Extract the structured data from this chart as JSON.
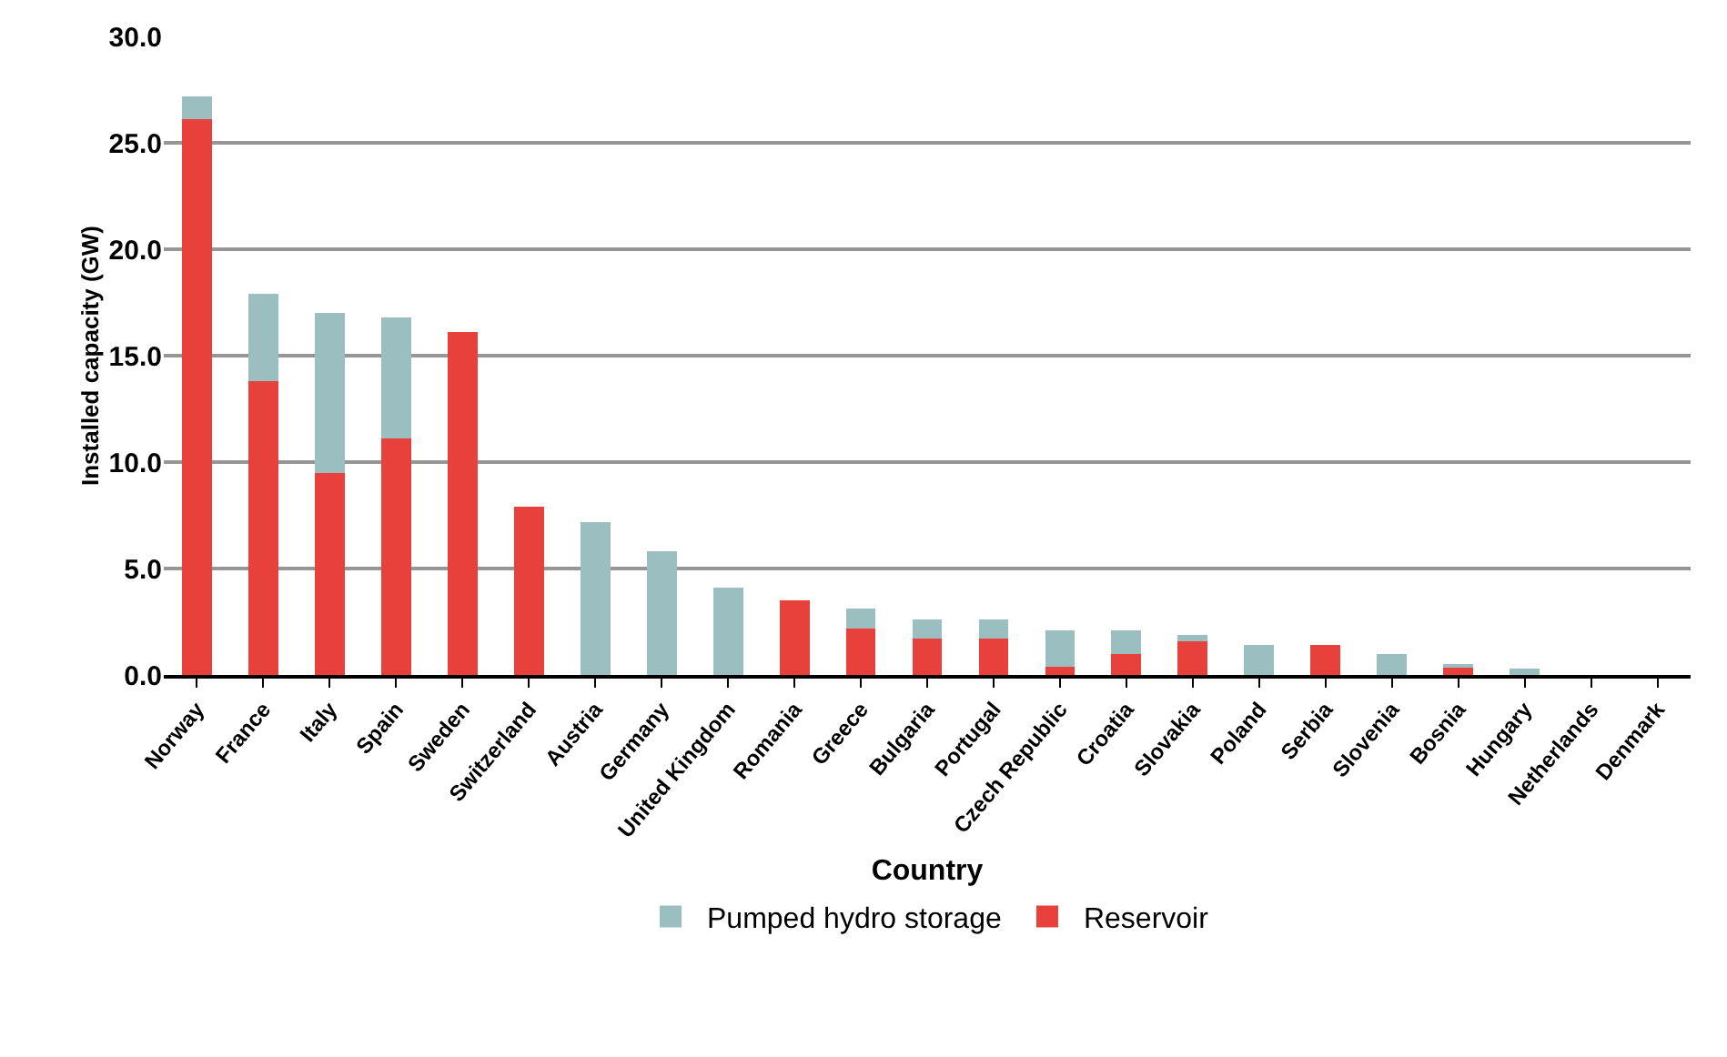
{
  "chart_data": {
    "type": "bar",
    "stacked": true,
    "xlabel": "Country",
    "ylabel": "Installed capacity (GW)",
    "categories": [
      "Norway",
      "France",
      "Italy",
      "Spain",
      "Sweden",
      "Switzerland",
      "Austria",
      "Germany",
      "United Kingdom",
      "Romania",
      "Greece",
      "Bulgaria",
      "Portugal",
      "Czech Republic",
      "Croatia",
      "Slovakia",
      "Poland",
      "Serbia",
      "Slovenia",
      "Bosnia",
      "Hungary",
      "Netherlands",
      "Denmark"
    ],
    "series": [
      {
        "name": "Reservoir",
        "color": "#e8403a",
        "values": [
          26.1,
          13.8,
          9.5,
          11.1,
          16.1,
          7.9,
          0,
          0,
          0,
          3.5,
          2.2,
          1.7,
          1.7,
          0.4,
          1.0,
          1.6,
          0,
          1.4,
          0,
          0.4,
          0,
          0,
          0
        ]
      },
      {
        "name": "Pumped hydro storage",
        "color": "#9bbfc1",
        "values": [
          1.1,
          4.1,
          7.5,
          5.7,
          0,
          0,
          7.2,
          5.8,
          4.1,
          0,
          0.9,
          0.9,
          0.9,
          1.7,
          1.1,
          0.3,
          1.4,
          0,
          1.0,
          0.1,
          0.3,
          0,
          0
        ]
      }
    ],
    "ylim": [
      0,
      30
    ],
    "yticks": [
      {
        "value": 0,
        "label": "0.0"
      },
      {
        "value": 5,
        "label": "5.0"
      },
      {
        "value": 10,
        "label": "10.0"
      },
      {
        "value": 15,
        "label": "15.0"
      },
      {
        "value": 20,
        "label": "20.0"
      },
      {
        "value": 25,
        "label": "25.0"
      },
      {
        "value": 30,
        "label": "30.0"
      }
    ],
    "grid": "y",
    "legend": "bottom"
  }
}
